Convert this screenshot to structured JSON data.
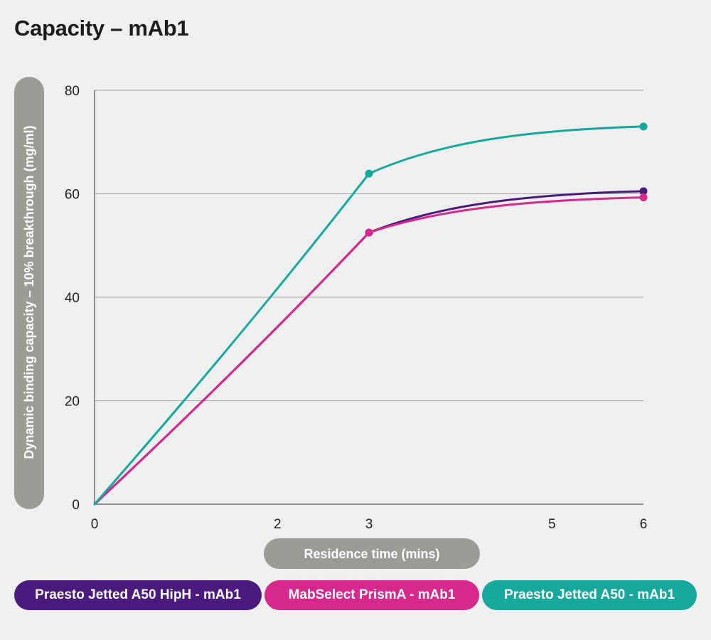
{
  "page_title": "Capacity – mAb1",
  "chart_data": {
    "type": "line",
    "title": "Capacity – mAb1",
    "xlabel": "Residence time (mins)",
    "ylabel": "Dynamic binding capacity – 10% breakthrough (mg/ml)",
    "x_ticks": [
      0,
      2,
      3,
      5,
      6
    ],
    "y_ticks": [
      0,
      20,
      40,
      60,
      80
    ],
    "ylim": [
      0,
      80
    ],
    "grid": true,
    "series": [
      {
        "name": "Praesto Jetted A50 HipH - mAb1",
        "color": "#4b1a7d",
        "points": [
          {
            "x": 0,
            "y": 0
          },
          {
            "x": 3,
            "y": 52.5
          },
          {
            "x": 6,
            "y": 60.5
          }
        ]
      },
      {
        "name": "MabSelect PrismA - mAb1",
        "color": "#d6288d",
        "points": [
          {
            "x": 0,
            "y": 0
          },
          {
            "x": 3,
            "y": 52.5
          },
          {
            "x": 6,
            "y": 59.3
          }
        ]
      },
      {
        "name": "Praesto Jetted A50 - mAb1",
        "color": "#16a79d",
        "points": [
          {
            "x": 0,
            "y": 0
          },
          {
            "x": 3,
            "y": 63.9
          },
          {
            "x": 6,
            "y": 73
          }
        ]
      }
    ]
  },
  "legend": {
    "items": [
      {
        "label": "Praesto Jetted A50 HipH - mAb1",
        "color": "#4b1a7d"
      },
      {
        "label": "MabSelect PrismA - mAb1",
        "color": "#d6288d"
      },
      {
        "label": "Praesto Jetted A50 - mAb1",
        "color": "#16a79d"
      }
    ]
  },
  "colors": {
    "background": "#eef0ef",
    "label_pill": "#9b9c98",
    "grid": "#a6a6a6"
  }
}
